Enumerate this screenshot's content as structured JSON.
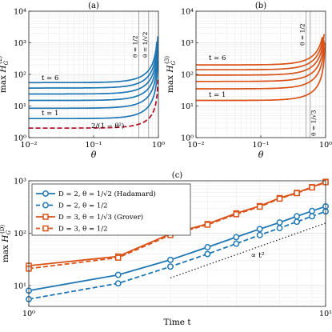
{
  "chart_data": [
    {
      "panel_label": "(a)",
      "type": "line",
      "xlabel": "θ",
      "ylabel": "max H_G^(2)",
      "xscale": "log",
      "yscale": "log",
      "xlim": [
        0.01,
        1
      ],
      "ylim": [
        1,
        10000
      ],
      "grid": true,
      "xtick_labels": [
        "10⁻²",
        "10⁻¹",
        "10⁰"
      ],
      "ytick_labels": [
        "10⁰",
        "10¹",
        "10²",
        "10³",
        "10⁴"
      ],
      "color": "#1f77b4",
      "series": [
        {
          "plateau": 4.0
        },
        {
          "plateau": 8.5
        },
        {
          "plateau": 15.0
        },
        {
          "plateau": 24.0
        },
        {
          "plateau": 37.0
        },
        {
          "plateau": 55.0
        }
      ],
      "reference_curve": {
        "label": "2/(1 − θ²)",
        "color": "#b2182b"
      },
      "vlines": [
        {
          "x": 0.5,
          "label": "θ = 1/2"
        },
        {
          "x": 0.7071,
          "label": "θ = 1/√2"
        }
      ],
      "curve_labels": [
        "t = 6",
        "t = 1"
      ]
    },
    {
      "panel_label": "(b)",
      "type": "line",
      "xlabel": "θ",
      "ylabel": "max H_G^(3)",
      "xscale": "log",
      "yscale": "log",
      "xlim": [
        0.01,
        1
      ],
      "ylim": [
        1,
        10000
      ],
      "grid": true,
      "xtick_labels": [
        "10⁻²",
        "10⁻¹",
        "10⁰"
      ],
      "ytick_labels": [
        "10⁰",
        "10¹",
        "10²",
        "10³",
        "10⁴"
      ],
      "color": "#d95319",
      "series": [
        {
          "plateau": 15.0
        },
        {
          "plateau": 35.0
        },
        {
          "plateau": 60.0
        },
        {
          "plateau": 95.0
        },
        {
          "plateau": 140.0
        },
        {
          "plateau": 200.0
        }
      ],
      "vlines": [
        {
          "x": 0.5,
          "label": "θ = 1/2"
        },
        {
          "x": 0.5774,
          "label": "θ = 1/√3"
        }
      ],
      "curve_labels": [
        "t = 6",
        "t = 1"
      ]
    },
    {
      "panel_label": "(c)",
      "type": "line",
      "xlabel": "Time t",
      "ylabel": "max H_G^(D)",
      "xscale": "log",
      "yscale": "log",
      "xlim": [
        1,
        10
      ],
      "ylim": [
        4,
        1000
      ],
      "grid": true,
      "xtick_labels": [
        "10⁰",
        "10¹"
      ],
      "ytick_labels": [
        "10¹",
        "10²",
        "10³"
      ],
      "legend_position": "top-left",
      "x": [
        1,
        2,
        3,
        4,
        5,
        6,
        7,
        8,
        9,
        10
      ],
      "series": [
        {
          "name": "D = 2, θ = 1/√2 (Hadamard)",
          "color": "#1f77b4",
          "dash": "solid",
          "marker": "circle",
          "values": [
            8,
            16,
            31,
            54,
            84,
            120,
            160,
            210,
            265,
            325
          ]
        },
        {
          "name": "D = 2, θ = 1/2",
          "color": "#1f77b4",
          "dash": "dashed",
          "marker": "circle",
          "values": [
            5.5,
            11,
            23,
            40,
            63,
            92,
            125,
            165,
            210,
            260
          ]
        },
        {
          "name": "D = 3, θ = 1/√3 (Grover)",
          "color": "#d95319",
          "dash": "solid",
          "marker": "square",
          "values": [
            24,
            36,
            97,
            150,
            240,
            330,
            470,
            590,
            760,
            960
          ]
        },
        {
          "name": "D = 3, θ = 1/2",
          "color": "#d95319",
          "dash": "dashed",
          "marker": "square",
          "values": [
            21,
            34,
            92,
            145,
            230,
            320,
            455,
            580,
            745,
            940
          ]
        }
      ],
      "reference_label": "∝ t²"
    }
  ]
}
